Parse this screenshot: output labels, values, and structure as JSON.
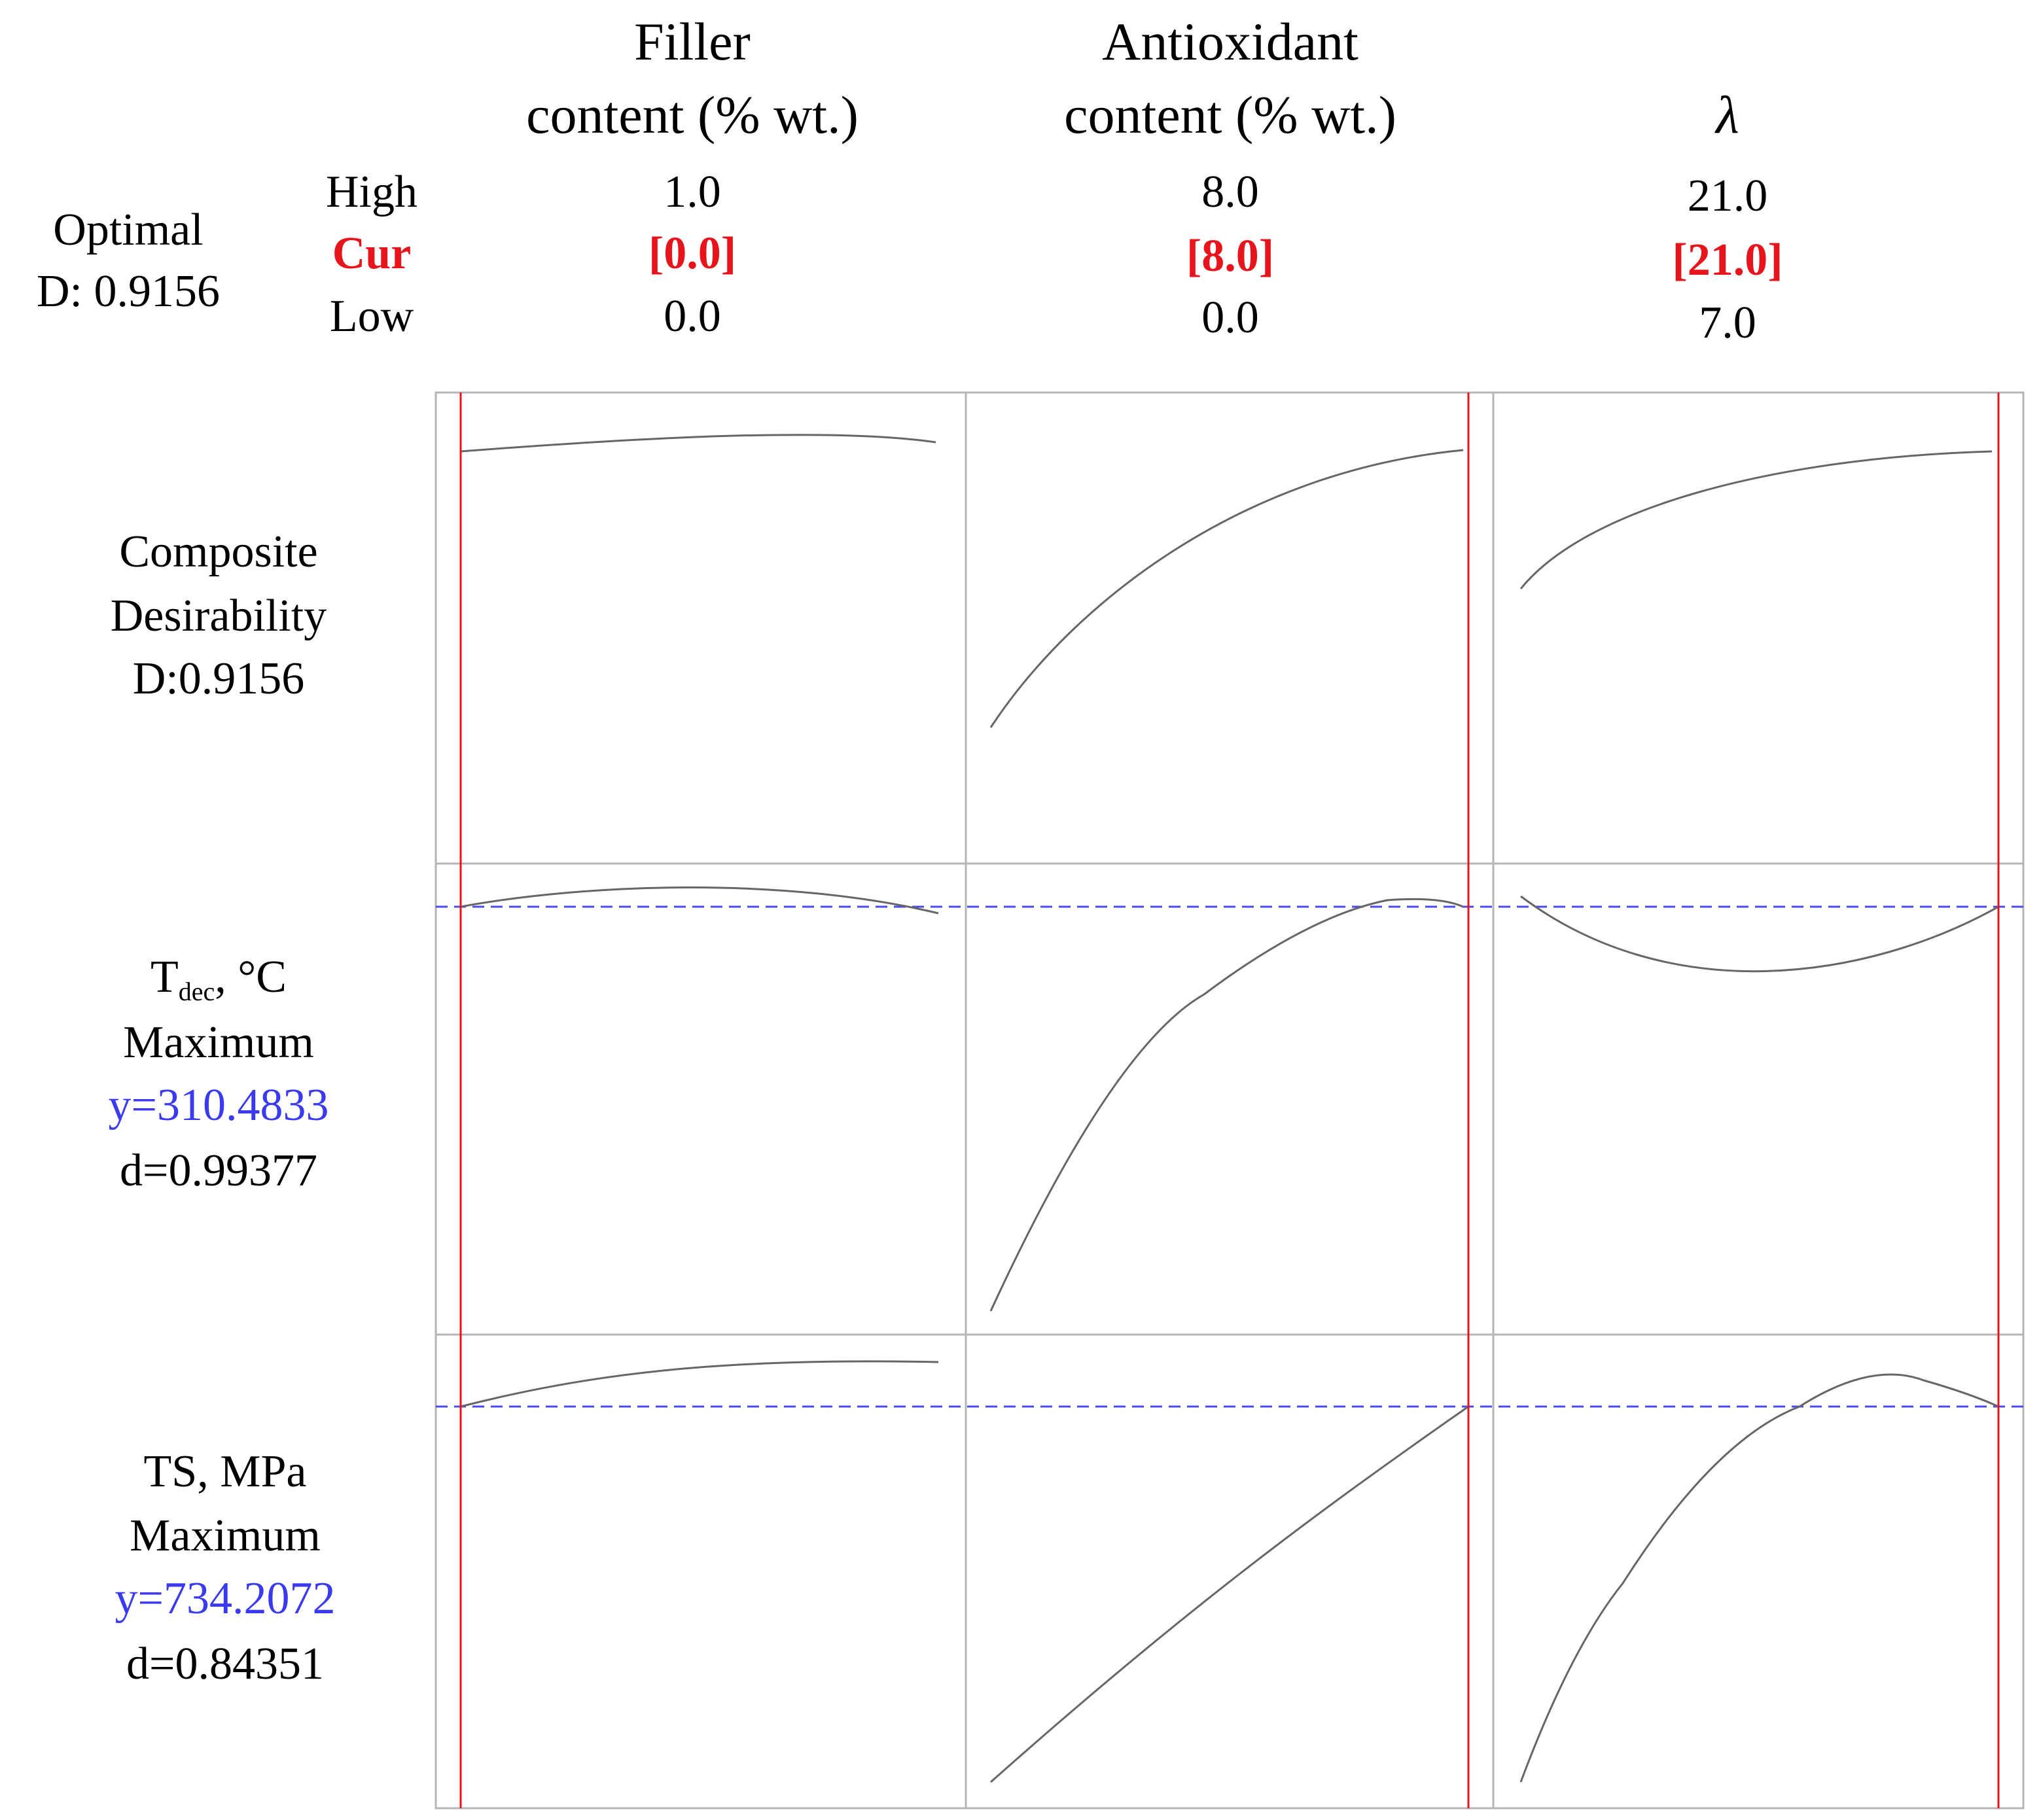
{
  "summary": {
    "label": "Optimal",
    "d": "D: 0.9156"
  },
  "levels": [
    "High",
    "Cur",
    "Low"
  ],
  "factors": [
    {
      "name": [
        "Filler",
        "content (% wt.)"
      ],
      "high": "1.0",
      "cur": "[0.0]",
      "low": "0.0"
    },
    {
      "name": [
        "Antioxidant",
        "content (% wt.)"
      ],
      "high": "8.0",
      "cur": "[8.0]",
      "low": "0.0"
    },
    {
      "name": [
        "λ"
      ],
      "high": "21.0",
      "cur": "[21.0]",
      "low": "7.0"
    }
  ],
  "responses": [
    {
      "lines": [
        "Composite",
        "Desirability",
        "D:0.9156"
      ]
    },
    {
      "name": "T",
      "subscript": "dec",
      "unit": ", °C",
      "goal": "Maximum",
      "y": "y=310.4833",
      "d": "d=0.99377"
    },
    {
      "name": "TS, MPa",
      "goal": "Maximum",
      "y": "y=734.2072",
      "d": "d=0.84351"
    }
  ]
}
